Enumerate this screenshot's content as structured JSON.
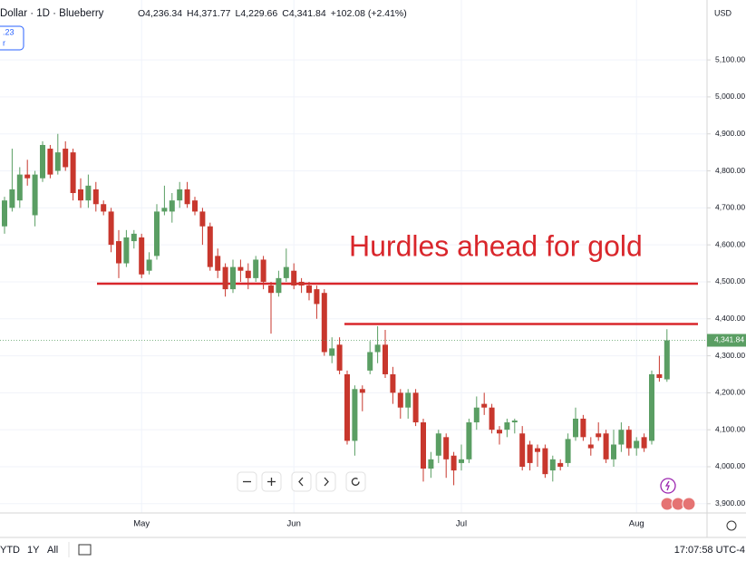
{
  "chart_data": {
    "type": "candlestick",
    "title": "Dollar · 1D · Blueberry",
    "ohlc_legend": [
      "O4,236.34",
      "H4,371.77",
      "L4,229.66",
      "C4,341.84",
      "+102.08 (+2.41%)"
    ],
    "currency": "USD",
    "annotation": "Hurdles ahead for gold",
    "indicator_box": [
      ".23",
      "r"
    ],
    "range_buttons": [
      "YTD",
      "1Y",
      "All"
    ],
    "clock": "17:07:58 UTC-4",
    "up_color": "#5a9e63",
    "down_color": "#c8372d",
    "line_color": "#d9262b",
    "grid": true,
    "ylim": [
      3875,
      5262
    ],
    "yticks": [
      {
        "value": 3900,
        "label": "3,900.00"
      },
      {
        "value": 4000,
        "label": "4,000.00"
      },
      {
        "value": 4100,
        "label": "4,100.00"
      },
      {
        "value": 4200,
        "label": "4,200.00"
      },
      {
        "value": 4300,
        "label": "4,300.00"
      },
      {
        "value": 4400,
        "label": "4,400.00"
      },
      {
        "value": 4500,
        "label": "4,500.00"
      },
      {
        "value": 4600,
        "label": "4,600.00"
      },
      {
        "value": 4700,
        "label": "4,700.00"
      },
      {
        "value": 4800,
        "label": "4,800.00"
      },
      {
        "value": 4900,
        "label": "4,900.00"
      },
      {
        "value": 5000,
        "label": "5,000.00"
      },
      {
        "value": 5100,
        "label": "5,100.00"
      }
    ],
    "last_price": {
      "value": 4341.84,
      "label": "4,341.84"
    },
    "hlines": [
      4495,
      4386
    ],
    "categories": [
      null,
      null,
      null,
      null,
      null,
      null,
      null,
      null,
      null,
      null,
      null,
      null,
      null,
      null,
      null,
      null,
      null,
      null,
      "May",
      null,
      null,
      null,
      null,
      null,
      null,
      null,
      null,
      null,
      null,
      null,
      null,
      null,
      null,
      null,
      null,
      null,
      null,
      null,
      "Jun",
      null,
      null,
      null,
      null,
      null,
      null,
      null,
      null,
      null,
      null,
      null,
      null,
      null,
      null,
      null,
      null,
      null,
      null,
      null,
      null,
      null,
      "Jul",
      null,
      null,
      null,
      null,
      null,
      null,
      null,
      null,
      null,
      null,
      null,
      null,
      null,
      null,
      null,
      null,
      null,
      null,
      null,
      null,
      null,
      null,
      "Aug",
      null,
      null,
      null,
      null
    ],
    "open": [
      4650,
      4700,
      4720,
      4790,
      4680,
      4780,
      4860,
      4800,
      4860,
      4850,
      4750,
      4720,
      4750,
      4710,
      4690,
      4610,
      4550,
      4610,
      4620,
      4530,
      4570,
      4690,
      4690,
      4720,
      4750,
      4720,
      4690,
      4650,
      4570,
      4540,
      4480,
      4540,
      4530,
      4510,
      4560,
      4490,
      4470,
      4510,
      4530,
      4500,
      4490,
      4480,
      4470,
      4300,
      4330,
      4250,
      4070,
      4210,
      4260,
      4310,
      4330,
      4250,
      4200,
      4160,
      4200,
      4120,
      3995,
      4030,
      4080,
      4030,
      4010,
      4020,
      4120,
      4170,
      4160,
      4100,
      4100,
      4120,
      4090,
      4060,
      4050,
      4050,
      3990,
      4010,
      4010,
      4080,
      4130,
      4060,
      4090,
      4090,
      4020,
      4060,
      4100,
      4050,
      4080,
      4070,
      4250,
      4236.34
    ],
    "high": [
      4730,
      4860,
      4810,
      4830,
      4800,
      4880,
      4870,
      4900,
      4880,
      4860,
      4780,
      4790,
      4770,
      4720,
      4700,
      4640,
      4640,
      4640,
      4630,
      4580,
      4710,
      4760,
      4740,
      4770,
      4770,
      4730,
      4700,
      4660,
      4590,
      4550,
      4560,
      4560,
      4550,
      4570,
      4570,
      4500,
      4530,
      4590,
      4550,
      4510,
      4500,
      4490,
      4480,
      4350,
      4350,
      4260,
      4220,
      4220,
      4340,
      4380,
      4370,
      4270,
      4210,
      4210,
      4210,
      4130,
      4040,
      4100,
      4090,
      4040,
      4060,
      4130,
      4190,
      4200,
      4170,
      4110,
      4130,
      4130,
      4110,
      4070,
      4060,
      4060,
      4030,
      4020,
      4090,
      4160,
      4140,
      4080,
      4120,
      4100,
      4100,
      4120,
      4110,
      4080,
      4090,
      4260,
      4300,
      4371.77
    ],
    "low": [
      4630,
      4690,
      4700,
      4760,
      4650,
      4770,
      4780,
      4790,
      4800,
      4720,
      4700,
      4700,
      4690,
      4680,
      4580,
      4510,
      4540,
      4590,
      4510,
      4520,
      4560,
      4680,
      4660,
      4700,
      4700,
      4680,
      4600,
      4530,
      4510,
      4460,
      4470,
      4500,
      4480,
      4500,
      4480,
      4360,
      4460,
      4500,
      4480,
      4470,
      4450,
      4400,
      4300,
      4280,
      4250,
      4060,
      4030,
      4150,
      4250,
      4280,
      4240,
      4170,
      4130,
      4130,
      4110,
      3960,
      3970,
      4010,
      3970,
      3950,
      3990,
      4010,
      4100,
      4140,
      4090,
      4060,
      4080,
      4090,
      3990,
      3990,
      4000,
      3970,
      3960,
      3990,
      4000,
      4070,
      4070,
      4030,
      4070,
      4010,
      4000,
      4040,
      4030,
      4030,
      4040,
      4060,
      4230,
      4229.66
    ],
    "close": [
      4720,
      4750,
      4790,
      4780,
      4790,
      4870,
      4790,
      4850,
      4810,
      4740,
      4720,
      4760,
      4710,
      4690,
      4600,
      4550,
      4620,
      4630,
      4520,
      4560,
      4690,
      4700,
      4720,
      4750,
      4710,
      4690,
      4650,
      4540,
      4530,
      4480,
      4540,
      4530,
      4510,
      4560,
      4500,
      4470,
      4510,
      4540,
      4490,
      4490,
      4470,
      4440,
      4310,
      4320,
      4260,
      4070,
      4210,
      4200,
      4310,
      4330,
      4250,
      4200,
      4160,
      4200,
      4120,
      3995,
      4020,
      4090,
      4020,
      3990,
      4020,
      4120,
      4160,
      4160,
      4100,
      4090,
      4120,
      4125,
      4000,
      4010,
      4040,
      3980,
      4020,
      4000,
      4075,
      4130,
      4080,
      4050,
      4080,
      4020,
      4060,
      4100,
      4050,
      4070,
      4050,
      4250,
      4240,
      4341.84
    ]
  }
}
